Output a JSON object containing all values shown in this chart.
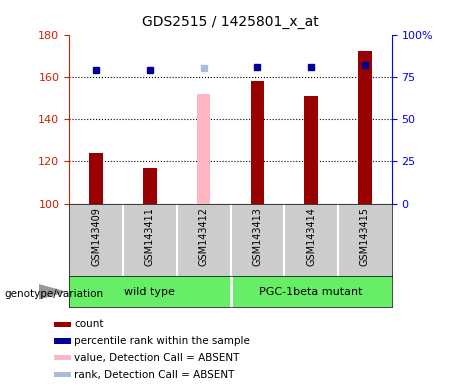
{
  "title": "GDS2515 / 1425801_x_at",
  "samples": [
    "GSM143409",
    "GSM143411",
    "GSM143412",
    "GSM143413",
    "GSM143414",
    "GSM143415"
  ],
  "count_values": [
    124,
    117,
    null,
    158,
    151,
    172
  ],
  "count_absent_values": [
    null,
    null,
    152,
    null,
    null,
    null
  ],
  "percentile_values": [
    79,
    79,
    null,
    81,
    81,
    82
  ],
  "percentile_absent_values": [
    null,
    null,
    80,
    null,
    null,
    null
  ],
  "ylim_left": [
    100,
    180
  ],
  "ylim_right": [
    0,
    100
  ],
  "yticks_left": [
    100,
    120,
    140,
    160,
    180
  ],
  "yticks_right": [
    0,
    25,
    50,
    75,
    100
  ],
  "ytick_labels_right": [
    "0",
    "25",
    "50",
    "75",
    "100%"
  ],
  "bar_color_present": "#990000",
  "bar_color_absent": "#FFB6C1",
  "dot_color_present": "#000099",
  "dot_color_absent": "#AABBDD",
  "sample_bg_color": "#CCCCCC",
  "group_bg_color": "#66EE66",
  "plot_bg": "#FFFFFF",
  "grid_dotted_lines": [
    120,
    140,
    160
  ],
  "legend_items": [
    {
      "label": "count",
      "color": "#990000"
    },
    {
      "label": "percentile rank within the sample",
      "color": "#000099"
    },
    {
      "label": "value, Detection Call = ABSENT",
      "color": "#FFB6C1"
    },
    {
      "label": "rank, Detection Call = ABSENT",
      "color": "#AABBDD"
    }
  ],
  "bar_width": 0.25,
  "fig_width": 4.61,
  "fig_height": 3.84,
  "dpi": 100
}
